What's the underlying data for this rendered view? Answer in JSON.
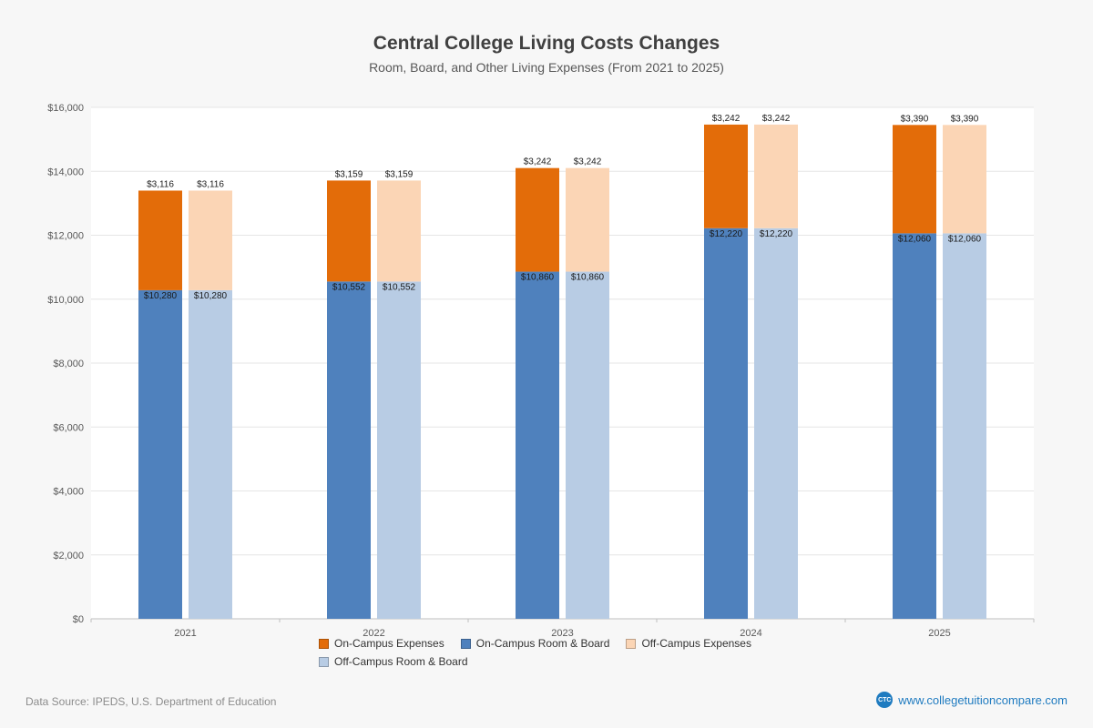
{
  "chart_data": {
    "type": "bar",
    "stacked": true,
    "title": "Central College Living Costs Changes",
    "subtitle": "Room, Board, and Other Living Expenses (From 2021 to 2025)",
    "xlabel": "",
    "ylabel": "",
    "grid": true,
    "legend_position": "bottom",
    "ylim": [
      0,
      16000
    ],
    "ytick_step": 2000,
    "ytick_labels": [
      "$0",
      "$2,000",
      "$4,000",
      "$6,000",
      "$8,000",
      "$10,000",
      "$12,000",
      "$14,000",
      "$16,000"
    ],
    "categories": [
      "2021",
      "2022",
      "2023",
      "2024",
      "2025"
    ],
    "series": [
      {
        "name": "On-Campus Room & Board",
        "bar": "on",
        "order": 0,
        "color": "#4f81bd",
        "values": [
          10280,
          10552,
          10860,
          12220,
          12060
        ],
        "labels": [
          "$10,280",
          "$10,552",
          "$10,860",
          "$12,220",
          "$12,060"
        ]
      },
      {
        "name": "On-Campus Expenses",
        "bar": "on",
        "order": 1,
        "color": "#e36c09",
        "values": [
          3116,
          3159,
          3242,
          3242,
          3390
        ],
        "labels": [
          "$3,116",
          "$3,159",
          "$3,242",
          "$3,242",
          "$3,390"
        ]
      },
      {
        "name": "Off-Campus Room & Board",
        "bar": "off",
        "order": 0,
        "color": "#b8cce4",
        "values": [
          10280,
          10552,
          10860,
          12220,
          12060
        ],
        "labels": [
          "$10,280",
          "$10,552",
          "$10,860",
          "$12,220",
          "$12,060"
        ]
      },
      {
        "name": "Off-Campus Expenses",
        "bar": "off",
        "order": 1,
        "color": "#fbd5b5",
        "values": [
          3116,
          3159,
          3242,
          3242,
          3390
        ],
        "labels": [
          "$3,116",
          "$3,159",
          "$3,242",
          "$3,242",
          "$3,390"
        ]
      }
    ],
    "legend": [
      {
        "label": "On-Campus Expenses",
        "color": "#e36c09"
      },
      {
        "label": "On-Campus Room & Board",
        "color": "#4f81bd"
      },
      {
        "label": "Off-Campus Expenses",
        "color": "#fbd5b5"
      },
      {
        "label": "Off-Campus Room & Board",
        "color": "#b8cce4"
      }
    ]
  },
  "footer": {
    "source": "Data Source: IPEDS, U.S. Department of Education",
    "website": "www.collegetuitioncompare.com",
    "logo_text": "CTC"
  },
  "colors": {
    "accent_blue": "#1f7bc0",
    "plot_background": "#ffffff",
    "page_background": "#f7f7f7",
    "gridline": "#e6e6e6"
  }
}
